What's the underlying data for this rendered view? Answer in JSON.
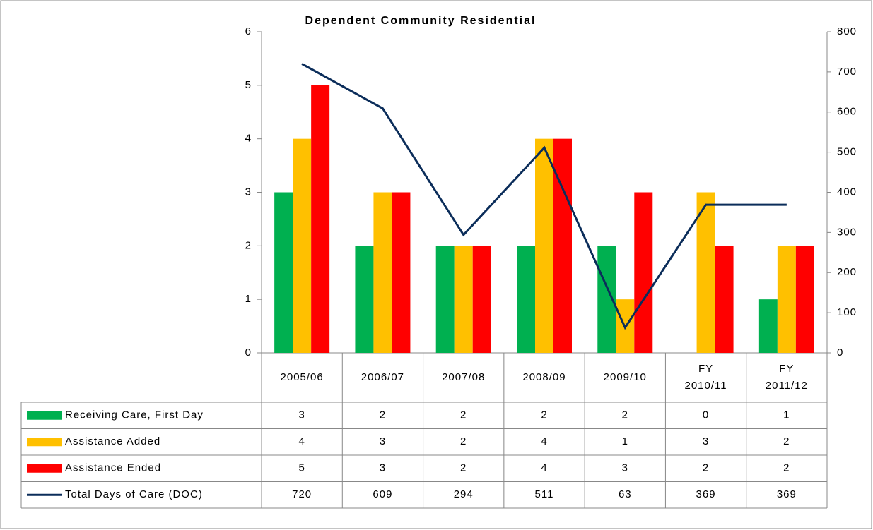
{
  "chart_data": {
    "type": "bar",
    "title": "Dependent Community Residential",
    "categories": [
      "2005/06",
      "2006/07",
      "2007/08",
      "2008/09",
      "2009/10",
      "FY 2010/11",
      "FY 2011/12"
    ],
    "series": [
      {
        "name": "Receiving Care, First Day",
        "color": "#00b050",
        "values": [
          3,
          2,
          2,
          2,
          2,
          0,
          1
        ]
      },
      {
        "name": "Assistance Added",
        "color": "#ffc000",
        "values": [
          4,
          3,
          2,
          4,
          1,
          3,
          2
        ]
      },
      {
        "name": "Assistance Ended",
        "color": "#ff0000",
        "values": [
          5,
          3,
          2,
          4,
          3,
          2,
          2
        ]
      },
      {
        "name": "Total Days of Care (DOC)",
        "color": "#0b2d5a",
        "type": "line",
        "axis": "y2",
        "values": [
          720,
          609,
          294,
          511,
          63,
          369,
          369
        ]
      }
    ],
    "ylim": [
      0,
      6
    ],
    "yticks": [
      0,
      1,
      2,
      3,
      4,
      5,
      6
    ],
    "y2lim": [
      0,
      800
    ],
    "y2ticks": [
      0,
      100,
      200,
      300,
      400,
      500,
      600,
      700,
      800
    ],
    "grid": false,
    "data_table": true
  }
}
